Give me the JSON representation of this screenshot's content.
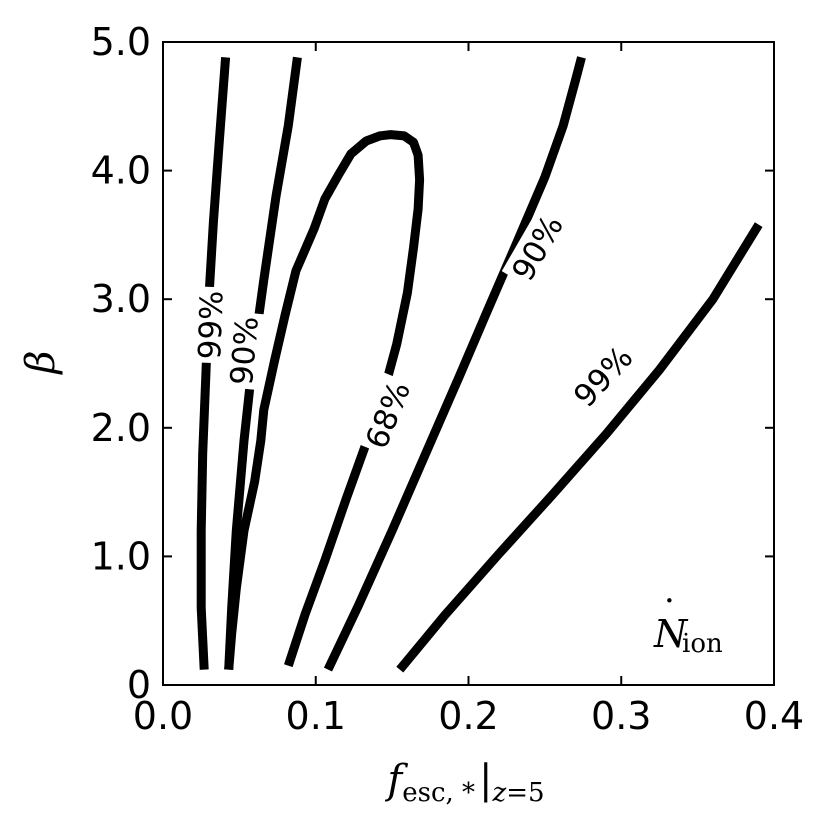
{
  "chart_data": {
    "type": "line",
    "title": "",
    "xlabel": "",
    "ylabel": "",
    "xlim": [
      0.0,
      0.4
    ],
    "ylim": [
      0.0,
      5.0
    ],
    "grid": false,
    "xlabel_parts": {
      "main": "f",
      "sub": "esc, *",
      "bar": "|",
      "z": "z",
      "eq": "=",
      "val": "5"
    },
    "ylabel_symbol": "β",
    "annotation": {
      "symbol": "N",
      "dot": "·",
      "sub": "ion"
    },
    "x_ticks": [
      {
        "value": 0.0,
        "label": "0.0"
      },
      {
        "value": 0.1,
        "label": "0.1"
      },
      {
        "value": 0.2,
        "label": "0.2"
      },
      {
        "value": 0.3,
        "label": "0.3"
      },
      {
        "value": 0.4,
        "label": "0.4"
      }
    ],
    "y_ticks": [
      {
        "value": 0.0,
        "label": "0"
      },
      {
        "value": 1.0,
        "label": "1.0"
      },
      {
        "value": 2.0,
        "label": "2.0"
      },
      {
        "value": 3.0,
        "label": "3.0"
      },
      {
        "value": 4.0,
        "label": "4.0"
      },
      {
        "value": 5.0,
        "label": "5.0"
      }
    ],
    "series": [
      {
        "name": "68%",
        "label_at": {
          "x": 0.147,
          "y": 2.1,
          "angle": -68
        },
        "x": [
          0.082,
          0.093,
          0.106,
          0.12,
          0.133,
          0.145,
          0.153,
          0.16,
          0.164,
          0.167,
          0.168,
          0.167,
          0.164,
          0.158,
          0.149,
          0.142,
          0.133,
          0.123,
          0.115,
          0.106,
          0.099,
          0.087,
          0.08,
          0.073,
          0.066,
          0.064,
          0.06,
          0.053,
          0.048,
          0.045,
          0.043
        ],
        "y": [
          0.15,
          0.55,
          0.97,
          1.45,
          1.88,
          2.3,
          2.65,
          3.05,
          3.4,
          3.7,
          3.93,
          4.12,
          4.22,
          4.27,
          4.28,
          4.27,
          4.23,
          4.13,
          3.97,
          3.78,
          3.55,
          3.22,
          2.88,
          2.52,
          2.14,
          1.9,
          1.58,
          1.2,
          0.75,
          0.4,
          0.12
        ]
      },
      {
        "name": "90%",
        "label_at": {
          "x": 0.053,
          "y": 2.6,
          "angle": -85
        },
        "x": [
          0.043,
          0.045,
          0.048,
          0.053,
          0.059,
          0.066,
          0.074,
          0.082,
          0.088
        ],
        "y": [
          0.12,
          0.6,
          1.2,
          1.9,
          2.55,
          3.15,
          3.8,
          4.35,
          4.88
        ]
      },
      {
        "name": "99%",
        "label_at": {
          "x": 0.031,
          "y": 2.8,
          "angle": -88
        },
        "x": [
          0.027,
          0.025,
          0.025,
          0.026,
          0.028,
          0.03,
          0.033,
          0.037,
          0.041
        ],
        "y": [
          0.12,
          0.6,
          1.2,
          1.8,
          2.4,
          3.0,
          3.6,
          4.25,
          4.88
        ]
      },
      {
        "name": "90%",
        "label_at": {
          "x": 0.245,
          "y": 3.4,
          "angle": -60
        },
        "x": [
          0.108,
          0.128,
          0.15,
          0.172,
          0.194,
          0.212,
          0.232,
          0.25,
          0.262,
          0.27,
          0.274
        ],
        "y": [
          0.12,
          0.62,
          1.2,
          1.8,
          2.4,
          2.9,
          3.45,
          3.95,
          4.35,
          4.7,
          4.88
        ]
      },
      {
        "name": "99%",
        "label_at": {
          "x": 0.288,
          "y": 2.4,
          "angle": -47
        },
        "x": [
          0.155,
          0.185,
          0.22,
          0.255,
          0.29,
          0.325,
          0.36,
          0.39
        ],
        "y": [
          0.12,
          0.55,
          1.02,
          1.48,
          1.95,
          2.45,
          3.0,
          3.58
        ]
      }
    ]
  }
}
